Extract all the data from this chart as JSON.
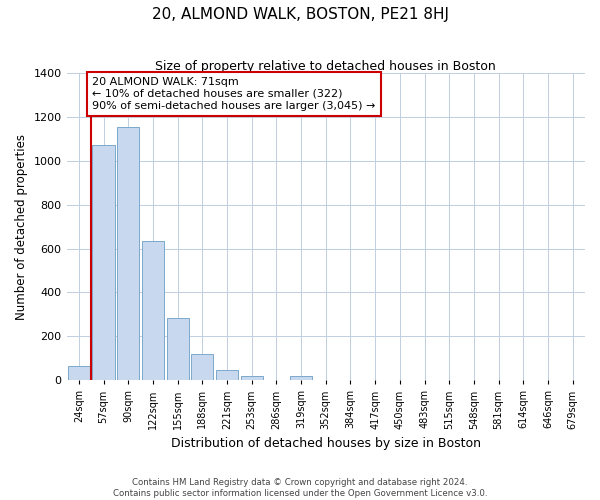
{
  "title": "20, ALMOND WALK, BOSTON, PE21 8HJ",
  "subtitle": "Size of property relative to detached houses in Boston",
  "xlabel": "Distribution of detached houses by size in Boston",
  "ylabel": "Number of detached properties",
  "bar_labels": [
    "24sqm",
    "57sqm",
    "90sqm",
    "122sqm",
    "155sqm",
    "188sqm",
    "221sqm",
    "253sqm",
    "286sqm",
    "319sqm",
    "352sqm",
    "384sqm",
    "417sqm",
    "450sqm",
    "483sqm",
    "515sqm",
    "548sqm",
    "581sqm",
    "614sqm",
    "646sqm",
    "679sqm"
  ],
  "bar_values": [
    65,
    1070,
    1155,
    635,
    285,
    120,
    48,
    20,
    0,
    18,
    0,
    0,
    0,
    0,
    0,
    0,
    0,
    0,
    0,
    0,
    0
  ],
  "bar_color": "#c8d8ee",
  "bar_edge_color": "#7aa8cc",
  "vline_color": "#cc0000",
  "annotation_text": "20 ALMOND WALK: 71sqm\n← 10% of detached houses are smaller (322)\n90% of semi-detached houses are larger (3,045) →",
  "annotation_box_color": "#ffffff",
  "annotation_box_edge": "#cc0000",
  "ylim": [
    0,
    1400
  ],
  "yticks": [
    0,
    200,
    400,
    600,
    800,
    1000,
    1200,
    1400
  ],
  "footer1": "Contains HM Land Registry data © Crown copyright and database right 2024.",
  "footer2": "Contains public sector information licensed under the Open Government Licence v3.0.",
  "bg_color": "#ffffff",
  "grid_color": "#c0cfe0"
}
